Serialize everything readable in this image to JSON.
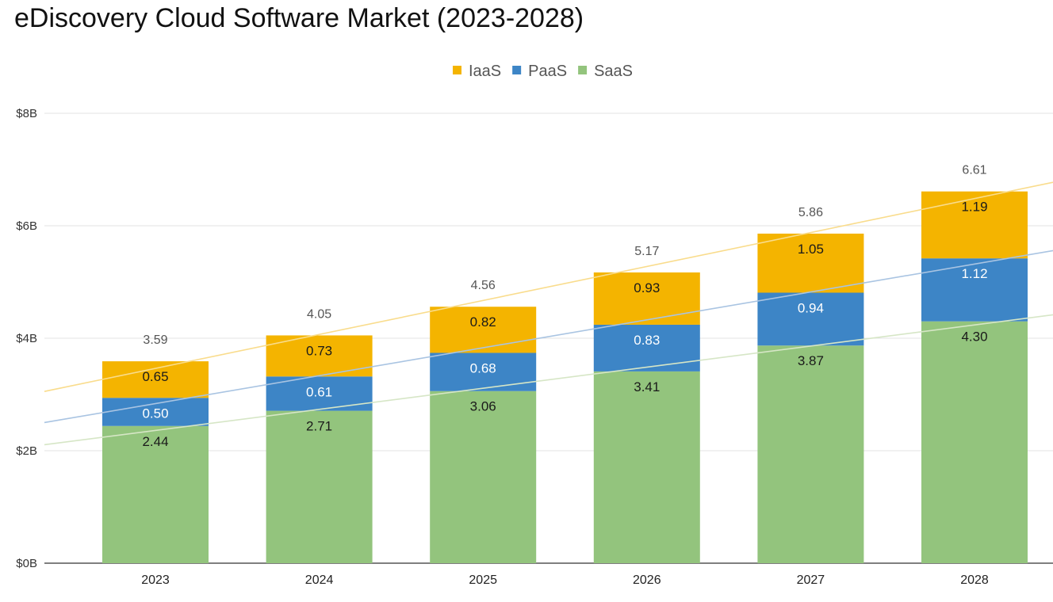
{
  "chart_data": {
    "type": "bar",
    "stacked": true,
    "title": "eDiscovery Cloud Software Market (2023-2028)",
    "xlabel": "",
    "ylabel": "",
    "categories": [
      "2023",
      "2024",
      "2025",
      "2026",
      "2027",
      "2028"
    ],
    "series": [
      {
        "name": "SaaS",
        "color": "#93c47d",
        "values": [
          2.44,
          2.71,
          3.06,
          3.41,
          3.87,
          4.3
        ],
        "label_color": "#1a1a1a"
      },
      {
        "name": "PaaS",
        "color": "#3d85c6",
        "values": [
          0.5,
          0.61,
          0.68,
          0.83,
          0.94,
          1.12
        ],
        "label_color": "#ffffff"
      },
      {
        "name": "IaaS",
        "color": "#f4b400",
        "values": [
          0.65,
          0.73,
          0.82,
          0.93,
          1.05,
          1.19
        ],
        "label_color": "#1a1a1a"
      }
    ],
    "totals": [
      3.59,
      4.05,
      4.56,
      5.17,
      5.86,
      6.61
    ],
    "legend": {
      "position": "top",
      "order": [
        "IaaS",
        "PaaS",
        "SaaS"
      ]
    },
    "yticks": [
      "$0B",
      "$2B",
      "$4B",
      "$6B",
      "$8B"
    ],
    "ytick_values": [
      0,
      2,
      4,
      6,
      8
    ],
    "ylim": [
      0,
      8
    ],
    "grid": true,
    "trendlines": [
      {
        "series": "IaaS",
        "color": "#f9dc8c"
      },
      {
        "series": "PaaS",
        "color": "#a9c4e2"
      },
      {
        "series": "SaaS",
        "color": "#d6e6c6"
      }
    ]
  }
}
